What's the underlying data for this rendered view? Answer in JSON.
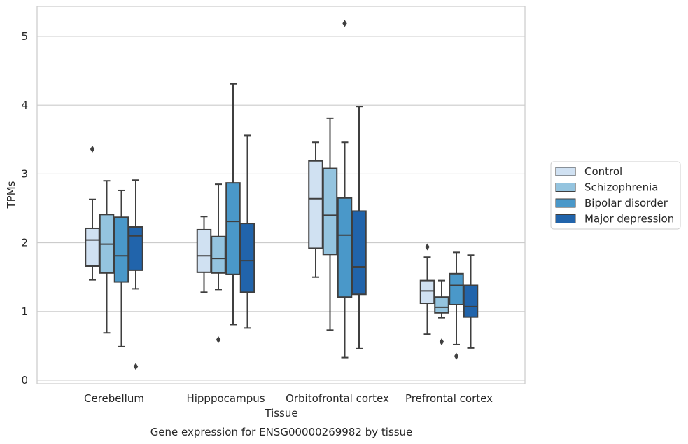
{
  "chart_data": {
    "type": "boxplot",
    "title": "",
    "caption": "Gene expression for ENSG00000269982 by tissue",
    "xlabel": "Tissue",
    "ylabel": "TPMs",
    "ylim": [
      -0.05,
      5.45
    ],
    "yticks": [
      "0",
      "1",
      "2",
      "3",
      "4",
      "5"
    ],
    "grid": "horizontal",
    "legend_position": "right",
    "categories": [
      "Cerebellum",
      "Hipppocampus",
      "Orbitofrontal cortex",
      "Prefrontal cortex"
    ],
    "series": [
      {
        "name": "Control",
        "color": "#d0e1f2",
        "boxes": [
          {
            "whisker_low": 1.46,
            "q1": 1.66,
            "median": 2.04,
            "q3": 2.21,
            "whisker_high": 2.63,
            "outliers": [
              3.36
            ]
          },
          {
            "whisker_low": 1.28,
            "q1": 1.57,
            "median": 1.81,
            "q3": 2.19,
            "whisker_high": 2.38,
            "outliers": []
          },
          {
            "whisker_low": 1.5,
            "q1": 1.92,
            "median": 2.64,
            "q3": 3.19,
            "whisker_high": 3.46,
            "outliers": []
          },
          {
            "whisker_low": 0.67,
            "q1": 1.12,
            "median": 1.3,
            "q3": 1.45,
            "whisker_high": 1.79,
            "outliers": [
              1.94
            ]
          }
        ]
      },
      {
        "name": "Schizophrenia",
        "color": "#94c4df",
        "boxes": [
          {
            "whisker_low": 0.69,
            "q1": 1.56,
            "median": 1.98,
            "q3": 2.41,
            "whisker_high": 2.9,
            "outliers": []
          },
          {
            "whisker_low": 1.32,
            "q1": 1.56,
            "median": 1.77,
            "q3": 2.09,
            "whisker_high": 2.85,
            "outliers": [
              0.59
            ]
          },
          {
            "whisker_low": 0.73,
            "q1": 1.83,
            "median": 2.4,
            "q3": 3.08,
            "whisker_high": 3.81,
            "outliers": []
          },
          {
            "whisker_low": 0.91,
            "q1": 0.98,
            "median": 1.06,
            "q3": 1.21,
            "whisker_high": 1.45,
            "outliers": [
              0.56
            ]
          }
        ]
      },
      {
        "name": "Bipolar disorder",
        "color": "#4a98c9",
        "boxes": [
          {
            "whisker_low": 0.49,
            "q1": 1.43,
            "median": 1.81,
            "q3": 2.37,
            "whisker_high": 2.76,
            "outliers": []
          },
          {
            "whisker_low": 0.81,
            "q1": 1.54,
            "median": 2.31,
            "q3": 2.87,
            "whisker_high": 4.31,
            "outliers": []
          },
          {
            "whisker_low": 0.33,
            "q1": 1.21,
            "median": 2.11,
            "q3": 2.65,
            "whisker_high": 3.46,
            "outliers": [
              5.19
            ]
          },
          {
            "whisker_low": 0.52,
            "q1": 1.1,
            "median": 1.38,
            "q3": 1.55,
            "whisker_high": 1.86,
            "outliers": [
              0.35
            ]
          }
        ]
      },
      {
        "name": "Major depression",
        "color": "#2164ab",
        "boxes": [
          {
            "whisker_low": 1.33,
            "q1": 1.6,
            "median": 2.1,
            "q3": 2.23,
            "whisker_high": 2.91,
            "outliers": [
              0.2
            ]
          },
          {
            "whisker_low": 0.76,
            "q1": 1.28,
            "median": 1.74,
            "q3": 2.28,
            "whisker_high": 3.56,
            "outliers": []
          },
          {
            "whisker_low": 0.46,
            "q1": 1.25,
            "median": 1.65,
            "q3": 2.46,
            "whisker_high": 3.98,
            "outliers": []
          },
          {
            "whisker_low": 0.47,
            "q1": 0.92,
            "median": 1.07,
            "q3": 1.38,
            "whisker_high": 1.82,
            "outliers": []
          }
        ]
      }
    ]
  }
}
